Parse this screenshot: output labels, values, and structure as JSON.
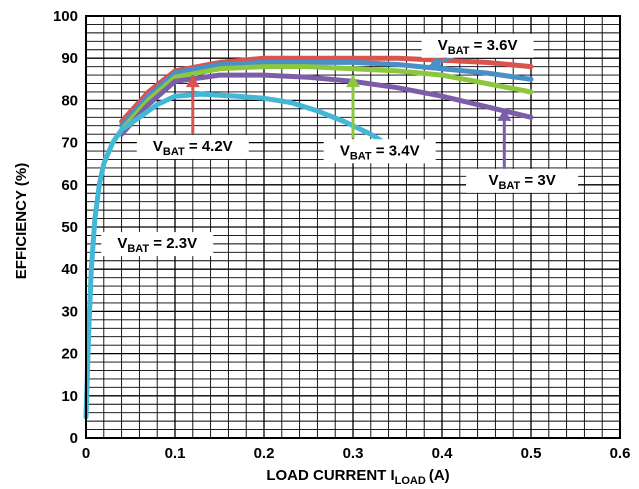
{
  "chart_data": {
    "type": "line",
    "title": "",
    "xlabel": "LOAD CURRENT I",
    "xlabel_sub": "LOAD",
    "xlabel_unit": "(A)",
    "ylabel": "EFFICIENCY (%)",
    "xlim": [
      0,
      0.6
    ],
    "ylim": [
      0,
      100
    ],
    "x_ticks": [
      "0",
      "0.1",
      "0.2",
      "0.3",
      "0.4",
      "0.5",
      "0.6"
    ],
    "y_ticks": [
      "0",
      "10",
      "20",
      "30",
      "40",
      "50",
      "60",
      "70",
      "80",
      "90",
      "100"
    ],
    "grid": true,
    "series": [
      {
        "name": "VBAT = 4.2V",
        "label_main": "V",
        "label_sub": "BAT",
        "label_val": " = 4.2V",
        "color": "#d9534f",
        "x": [
          0.04,
          0.07,
          0.1,
          0.15,
          0.2,
          0.25,
          0.3,
          0.35,
          0.4,
          0.45,
          0.5
        ],
        "y": [
          75,
          82,
          87,
          89,
          90,
          90,
          90,
          90,
          89.5,
          89,
          88
        ]
      },
      {
        "name": "VBAT = 3.6V",
        "label_main": "V",
        "label_sub": "BAT",
        "label_val": " = 3.6V",
        "color": "#4a90c8",
        "x": [
          0.04,
          0.07,
          0.1,
          0.15,
          0.2,
          0.25,
          0.3,
          0.35,
          0.4,
          0.45,
          0.5
        ],
        "y": [
          74,
          81,
          86.5,
          88.5,
          89,
          89,
          89,
          88.5,
          87.5,
          86.5,
          85
        ]
      },
      {
        "name": "VBAT = 3.4V",
        "label_main": "V",
        "label_sub": "BAT",
        "label_val": " = 3.4V",
        "color": "#8dc63f",
        "x": [
          0.04,
          0.07,
          0.1,
          0.15,
          0.2,
          0.25,
          0.3,
          0.35,
          0.4,
          0.45,
          0.5
        ],
        "y": [
          73,
          80,
          85.5,
          87.5,
          88,
          88,
          87.5,
          87,
          86,
          84,
          82
        ]
      },
      {
        "name": "VBAT = 3V",
        "label_main": "V",
        "label_sub": "BAT",
        "label_val": " = 3V",
        "color": "#7b5ea7",
        "x": [
          0.04,
          0.07,
          0.1,
          0.15,
          0.2,
          0.25,
          0.3,
          0.35,
          0.4,
          0.45,
          0.5
        ],
        "y": [
          72,
          79,
          84.5,
          86,
          86,
          85.5,
          84.5,
          83,
          81,
          78.5,
          76
        ]
      },
      {
        "name": "VBAT = 2.3V",
        "label_main": "V",
        "label_sub": "BAT",
        "label_val": " = 2.3V",
        "color": "#43b7d6",
        "x": [
          0.0,
          0.003,
          0.006,
          0.01,
          0.015,
          0.02,
          0.03,
          0.04,
          0.06,
          0.08,
          0.1,
          0.13,
          0.17,
          0.2,
          0.23,
          0.26,
          0.29,
          0.32,
          0.335
        ],
        "y": [
          5,
          25,
          40,
          52,
          60,
          65,
          70,
          73,
          76,
          79,
          81,
          81.5,
          81,
          80.5,
          79.5,
          77.5,
          75,
          72,
          70
        ]
      }
    ],
    "annotations": [
      {
        "series": 0,
        "text_x": 0.12,
        "text_y": 68
      },
      {
        "series": 1,
        "text_x": 0.44,
        "text_y": 92
      },
      {
        "series": 2,
        "text_x": 0.33,
        "text_y": 67
      },
      {
        "series": 3,
        "text_x": 0.49,
        "text_y": 60
      },
      {
        "series": 4,
        "text_x": 0.08,
        "text_y": 45
      }
    ]
  }
}
